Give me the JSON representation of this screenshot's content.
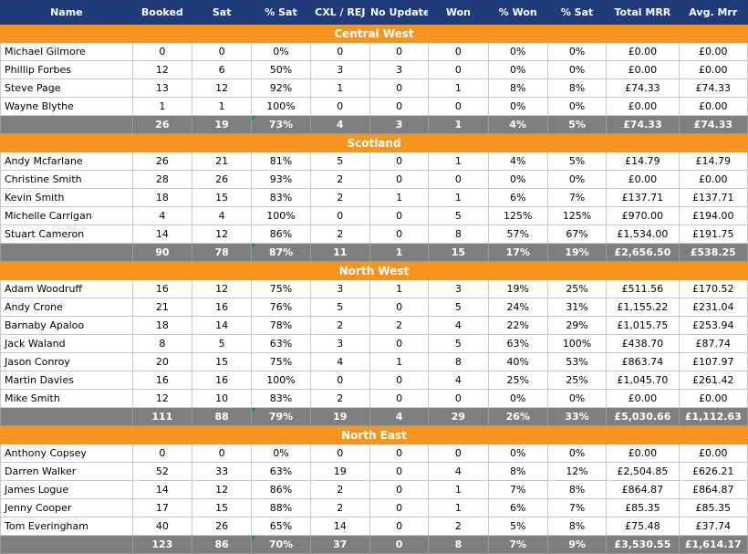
{
  "headers": [
    "Name",
    "Booked",
    "Sat",
    "% Sat",
    "CXL / REJ",
    "No Update",
    "Won",
    "% Won",
    "% Sat",
    "Total MRR",
    "Avg. Mrr"
  ],
  "regions": [
    {
      "name": "Central West",
      "rows": [
        [
          "Michael Gilmore",
          "0",
          "0",
          "0%",
          "0",
          "0",
          "0",
          "0%",
          "0%",
          "£0.00",
          "£0.00"
        ],
        [
          "Phillip Forbes",
          "12",
          "6",
          "50%",
          "3",
          "3",
          "0",
          "0%",
          "0%",
          "£0.00",
          "£0.00"
        ],
        [
          "Steve Page",
          "13",
          "12",
          "92%",
          "1",
          "0",
          "1",
          "8%",
          "8%",
          "£74.33",
          "£74.33"
        ],
        [
          "Wayne Blythe",
          "1",
          "1",
          "100%",
          "0",
          "0",
          "0",
          "0%",
          "0%",
          "£0.00",
          "£0.00"
        ]
      ],
      "total": [
        "",
        "26",
        "19",
        "73%",
        "4",
        "3",
        "1",
        "4%",
        "5%",
        "£74.33",
        "£74.33"
      ]
    },
    {
      "name": "Scotland",
      "rows": [
        [
          "Andy Mcfarlane",
          "26",
          "21",
          "81%",
          "5",
          "0",
          "1",
          "4%",
          "5%",
          "£14.79",
          "£14.79"
        ],
        [
          "Christine Smith",
          "28",
          "26",
          "93%",
          "2",
          "0",
          "0",
          "0%",
          "0%",
          "£0.00",
          "£0.00"
        ],
        [
          "Kevin Smith",
          "18",
          "15",
          "83%",
          "2",
          "1",
          "1",
          "6%",
          "7%",
          "£137.71",
          "£137.71"
        ],
        [
          "Michelle Carrigan",
          "4",
          "4",
          "100%",
          "0",
          "0",
          "5",
          "125%",
          "125%",
          "£970.00",
          "£194.00"
        ],
        [
          "Stuart Cameron",
          "14",
          "12",
          "86%",
          "2",
          "0",
          "8",
          "57%",
          "67%",
          "£1,534.00",
          "£191.75"
        ]
      ],
      "total": [
        "",
        "90",
        "78",
        "87%",
        "11",
        "1",
        "15",
        "17%",
        "19%",
        "£2,656.50",
        "£538.25"
      ]
    },
    {
      "name": "North West",
      "rows": [
        [
          "Adam Woodruff",
          "16",
          "12",
          "75%",
          "3",
          "1",
          "3",
          "19%",
          "25%",
          "£511.56",
          "£170.52"
        ],
        [
          "Andy Crone",
          "21",
          "16",
          "76%",
          "5",
          "0",
          "5",
          "24%",
          "31%",
          "£1,155.22",
          "£231.04"
        ],
        [
          "Barnaby Apaloo",
          "18",
          "14",
          "78%",
          "2",
          "2",
          "4",
          "22%",
          "29%",
          "£1,015.75",
          "£253.94"
        ],
        [
          "Jack Waland",
          "8",
          "5",
          "63%",
          "3",
          "0",
          "5",
          "63%",
          "100%",
          "£438.70",
          "£87.74"
        ],
        [
          "Jason Conroy",
          "20",
          "15",
          "75%",
          "4",
          "1",
          "8",
          "40%",
          "53%",
          "£863.74",
          "£107.97"
        ],
        [
          "Martin Davies",
          "16",
          "16",
          "100%",
          "0",
          "0",
          "4",
          "25%",
          "25%",
          "£1,045.70",
          "£261.42"
        ],
        [
          "Mike Smith",
          "12",
          "10",
          "83%",
          "2",
          "0",
          "0",
          "0%",
          "0%",
          "£0.00",
          "£0.00"
        ]
      ],
      "total": [
        "",
        "111",
        "88",
        "79%",
        "19",
        "4",
        "29",
        "26%",
        "33%",
        "£5,030.66",
        "£1,112.63"
      ]
    },
    {
      "name": "North East",
      "rows": [
        [
          "Anthony Copsey",
          "0",
          "0",
          "0%",
          "0",
          "0",
          "0",
          "0%",
          "0%",
          "£0.00",
          "£0.00"
        ],
        [
          "Darren Walker",
          "52",
          "33",
          "63%",
          "19",
          "0",
          "4",
          "8%",
          "12%",
          "£2,504.85",
          "£626.21"
        ],
        [
          "James Logue",
          "14",
          "12",
          "86%",
          "2",
          "0",
          "1",
          "7%",
          "8%",
          "£864.87",
          "£864.87"
        ],
        [
          "Jenny Cooper",
          "17",
          "15",
          "88%",
          "2",
          "0",
          "1",
          "6%",
          "7%",
          "£85.35",
          "£85.35"
        ],
        [
          "Tom Everingham",
          "40",
          "26",
          "65%",
          "14",
          "0",
          "2",
          "5%",
          "8%",
          "£75.48",
          "£37.74"
        ]
      ],
      "total": [
        "",
        "123",
        "86",
        "70%",
        "37",
        "0",
        "8",
        "7%",
        "9%",
        "£3,530.55",
        "£1,614.17"
      ]
    }
  ]
}
